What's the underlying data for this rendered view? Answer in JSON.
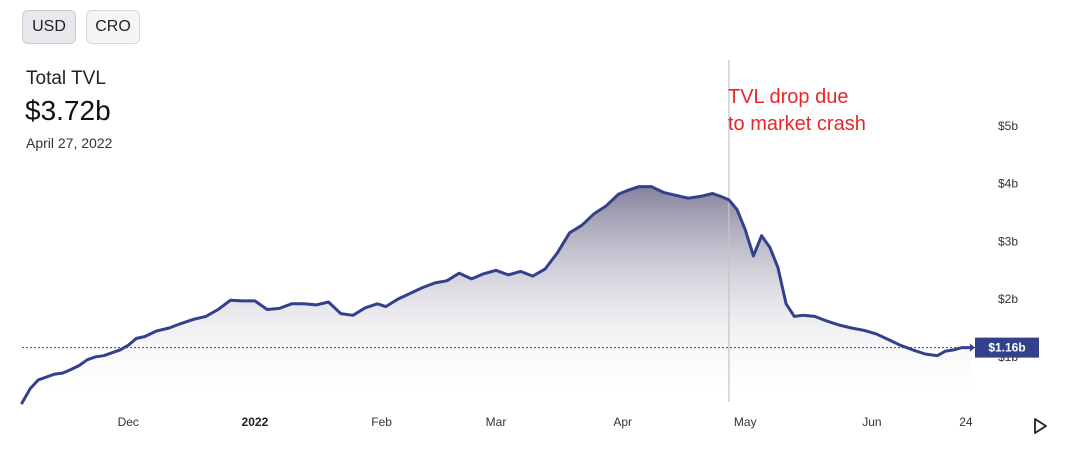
{
  "currency_toggle": {
    "usd_label": "USD",
    "cro_label": "CRO",
    "selected": "USD"
  },
  "stat": {
    "label": "Total TVL",
    "value": "$3.72b",
    "date": "April 27, 2022"
  },
  "annotation": {
    "line1": "TVL drop due",
    "line2": "to market crash",
    "color": "#e8272a"
  },
  "colors": {
    "line": "#33418c",
    "area_top": "#7f7b96",
    "reference": "#33418c",
    "badge": "#33418c"
  },
  "chart_data": {
    "type": "area",
    "title": "Total TVL",
    "xlabel": "",
    "ylabel": "",
    "ylim": [
      0.2,
      5.4
    ],
    "x_ticks": [
      {
        "label": "Dec",
        "date": "2021-12-01",
        "bold": false
      },
      {
        "label": "2022",
        "date": "2022-01-01",
        "bold": true
      },
      {
        "label": "Feb",
        "date": "2022-02-01",
        "bold": false
      },
      {
        "label": "Mar",
        "date": "2022-03-01",
        "bold": false
      },
      {
        "label": "Apr",
        "date": "2022-04-01",
        "bold": false
      },
      {
        "label": "May",
        "date": "2022-05-01",
        "bold": false
      },
      {
        "label": "Jun",
        "date": "2022-06-01",
        "bold": false
      },
      {
        "label": "24",
        "date": "2022-06-24",
        "bold": false
      }
    ],
    "y_ticks": [
      {
        "label": "$1b",
        "value": 1
      },
      {
        "label": "$2b",
        "value": 2
      },
      {
        "label": "$3b",
        "value": 3
      },
      {
        "label": "$4b",
        "value": 4
      },
      {
        "label": "$5b",
        "value": 5
      }
    ],
    "reference_line": {
      "value": 1.16,
      "label": "$1.16b"
    },
    "marker": {
      "date": "2022-04-27",
      "value": 3.72
    },
    "grid": false,
    "series": [
      {
        "x": [
          "2021-11-05",
          "2021-11-07",
          "2021-11-09",
          "2021-11-11",
          "2021-11-13",
          "2021-11-15",
          "2021-11-17",
          "2021-11-19",
          "2021-11-21",
          "2021-11-23",
          "2021-11-25",
          "2021-11-27",
          "2021-11-29",
          "2021-12-01",
          "2021-12-03",
          "2021-12-05",
          "2021-12-08",
          "2021-12-11",
          "2021-12-14",
          "2021-12-17",
          "2021-12-20",
          "2021-12-23",
          "2021-12-26",
          "2021-12-29",
          "2022-01-01",
          "2022-01-04",
          "2022-01-07",
          "2022-01-10",
          "2022-01-13",
          "2022-01-16",
          "2022-01-19",
          "2022-01-22",
          "2022-01-25",
          "2022-01-28",
          "2022-01-31",
          "2022-02-02",
          "2022-02-05",
          "2022-02-08",
          "2022-02-11",
          "2022-02-14",
          "2022-02-17",
          "2022-02-20",
          "2022-02-23",
          "2022-02-26",
          "2022-03-01",
          "2022-03-04",
          "2022-03-07",
          "2022-03-10",
          "2022-03-13",
          "2022-03-16",
          "2022-03-19",
          "2022-03-22",
          "2022-03-25",
          "2022-03-28",
          "2022-03-31",
          "2022-04-02",
          "2022-04-05",
          "2022-04-08",
          "2022-04-11",
          "2022-04-14",
          "2022-04-17",
          "2022-04-20",
          "2022-04-23",
          "2022-04-25",
          "2022-04-27",
          "2022-04-29",
          "2022-05-01",
          "2022-05-03",
          "2022-05-05",
          "2022-05-07",
          "2022-05-09",
          "2022-05-11",
          "2022-05-13",
          "2022-05-15",
          "2022-05-18",
          "2022-05-21",
          "2022-05-24",
          "2022-05-27",
          "2022-05-30",
          "2022-06-02",
          "2022-06-05",
          "2022-06-08",
          "2022-06-11",
          "2022-06-14",
          "2022-06-17",
          "2022-06-19",
          "2022-06-21",
          "2022-06-23",
          "2022-06-25"
        ],
        "y": [
          0.2,
          0.45,
          0.6,
          0.65,
          0.7,
          0.72,
          0.78,
          0.85,
          0.95,
          1.0,
          1.02,
          1.07,
          1.12,
          1.2,
          1.32,
          1.35,
          1.45,
          1.5,
          1.58,
          1.65,
          1.7,
          1.82,
          1.98,
          1.97,
          1.97,
          1.82,
          1.84,
          1.92,
          1.92,
          1.9,
          1.95,
          1.75,
          1.72,
          1.85,
          1.92,
          1.87,
          2.0,
          2.1,
          2.2,
          2.28,
          2.32,
          2.45,
          2.35,
          2.44,
          2.5,
          2.42,
          2.48,
          2.4,
          2.52,
          2.8,
          3.15,
          3.28,
          3.48,
          3.62,
          3.82,
          3.88,
          3.95,
          3.95,
          3.85,
          3.8,
          3.75,
          3.78,
          3.83,
          3.78,
          3.72,
          3.55,
          3.2,
          2.75,
          3.1,
          2.9,
          2.55,
          1.92,
          1.7,
          1.72,
          1.7,
          1.62,
          1.55,
          1.5,
          1.46,
          1.4,
          1.3,
          1.2,
          1.12,
          1.05,
          1.02,
          1.1,
          1.12,
          1.16,
          1.16
        ]
      }
    ]
  }
}
